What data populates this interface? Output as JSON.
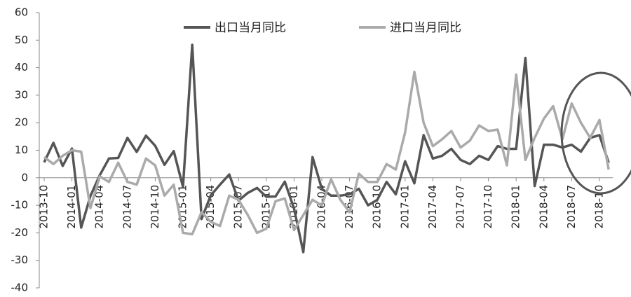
{
  "chart_data": {
    "type": "line",
    "categories": [
      "2013-10",
      null,
      null,
      "2014-01",
      null,
      null,
      "2014-04",
      null,
      null,
      "2014-07",
      null,
      null,
      "2014-10",
      null,
      null,
      "2015-01",
      null,
      null,
      "2015-04",
      null,
      null,
      "2015-07",
      null,
      null,
      "2015-10",
      null,
      null,
      "2016-01",
      null,
      null,
      "2016-04",
      null,
      null,
      "2016-07",
      null,
      null,
      "2016-10",
      null,
      null,
      "2017-01",
      null,
      null,
      "2017-04",
      null,
      null,
      "2017-07",
      null,
      null,
      "2017-10",
      null,
      null,
      "2018-01",
      null,
      null,
      "2018-04",
      null,
      null,
      "2018-07",
      null,
      null,
      "2018-10",
      null
    ],
    "series": [
      {
        "name": "出口当月同比",
        "color": "#555555",
        "values": [
          5.6,
          12.7,
          4.3,
          10.6,
          -18.1,
          -6.6,
          0.9,
          7.0,
          7.2,
          14.5,
          9.4,
          15.3,
          11.6,
          4.7,
          9.7,
          -3.3,
          48.3,
          -15,
          -6.4,
          -2.5,
          1.2,
          -8.3,
          -5.5,
          -3.7,
          -6.9,
          -6.8,
          -1.4,
          -11.2,
          -27,
          7.5,
          -4,
          -6.5,
          -6.5,
          -6,
          -4,
          -10,
          -8,
          -1.5,
          -6,
          6,
          -2,
          15.5,
          7,
          8,
          10.5,
          6.5,
          5,
          8,
          6.5,
          11.5,
          10.5,
          10.5,
          43.5,
          -3,
          12,
          12,
          11,
          12,
          9.5,
          14.5,
          15.5,
          5.5
        ]
      },
      {
        "name": "进口当月同比",
        "color": "#aaaaaa",
        "values": [
          7.5,
          5,
          8,
          10,
          9.5,
          -11,
          0.5,
          -1.5,
          5.5,
          -1.5,
          -2.5,
          7,
          4.5,
          -6.5,
          -2.5,
          -20,
          -20.5,
          -12.5,
          -16,
          -17.5,
          -6.5,
          -8,
          -13.5,
          -20,
          -18.5,
          -8.5,
          -7.5,
          -19,
          -13.5,
          -8,
          -10,
          -0.5,
          -8,
          -12.5,
          1.5,
          -1.5,
          -1.5,
          5,
          3,
          16.5,
          38.5,
          20,
          11.5,
          14,
          17,
          11,
          13.5,
          19,
          17,
          17.5,
          4.5,
          37.5,
          6.5,
          14.5,
          21.5,
          26,
          14,
          27,
          20,
          14.5,
          21,
          3
        ]
      }
    ],
    "ylim": [
      -40,
      60
    ],
    "yticks": [
      -40,
      -30,
      -20,
      -10,
      0,
      10,
      20,
      30,
      40,
      50,
      60
    ],
    "grid": false
  }
}
